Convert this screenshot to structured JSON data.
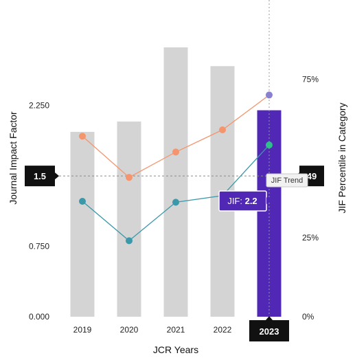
{
  "chart_data": {
    "type": "bar",
    "categories": [
      "2019",
      "2020",
      "2021",
      "2022",
      "2023"
    ],
    "xlabel": "JCR Years",
    "ylabel_left": "Journal Impact Factor",
    "ylabel_right": "JIF Percentile in Category",
    "ylim_left": [
      0,
      3.375
    ],
    "ylim_right": [
      0,
      100
    ],
    "left_ticks": [
      "0.000",
      "0.750",
      "2.250"
    ],
    "left_tick_values": [
      0,
      0.75,
      2.25
    ],
    "right_ticks": [
      "0%",
      "25%",
      "75%"
    ],
    "right_tick_values": [
      0,
      25,
      75
    ],
    "bars": {
      "values": [
        1.97,
        2.08,
        2.87,
        2.67,
        2.2
      ],
      "color": "#d4d4d4",
      "highlight_color": "#5128b6",
      "highlight_index": 4
    },
    "series": [
      {
        "values": [
          57,
          44,
          52,
          59,
          70
        ],
        "color": "#f4956e"
      },
      {
        "values": [
          1.23,
          0.81,
          1.22,
          1.29,
          1.83
        ],
        "color": "#3b98a8"
      }
    ],
    "highlight_point_colors": [
      "#8a7fd0",
      "#2ebf8a"
    ],
    "reference_left": {
      "value": 1.5,
      "label": "1.5"
    },
    "reference_right": {
      "value": 49,
      "label": "49"
    },
    "tooltip_label": "JIF Trend",
    "jif_label": "JIF:",
    "jif_value": "2.2",
    "selected_year": "2023",
    "grid": false
  }
}
